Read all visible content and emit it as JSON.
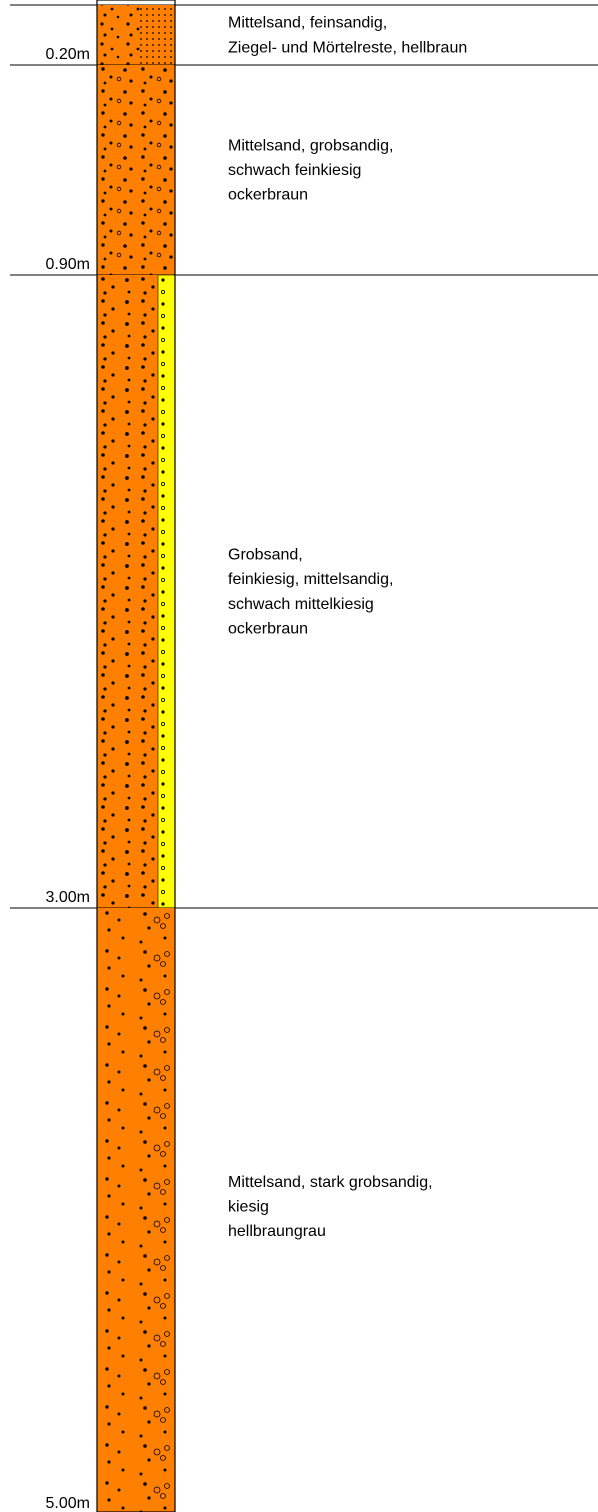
{
  "layers": [
    {
      "depth": "0.20m",
      "description": [
        "Mittelsand, feinsandig,",
        "Ziegel- und Mörtelreste, hellbraun"
      ]
    },
    {
      "depth": "0.90m",
      "description": [
        "Mittelsand, grobsandig,",
        "schwach feinkiesig",
        "ockerbraun"
      ]
    },
    {
      "depth": "3.00m",
      "description": [
        "Grobsand,",
        "feinkiesig, mittelsandig,",
        "schwach mittelkiesig",
        "ockerbraun"
      ]
    },
    {
      "depth": "5.00m",
      "description": [
        "Mittelsand, stark grobsandig,",
        "kiesig",
        "hellbraungrau"
      ]
    }
  ]
}
